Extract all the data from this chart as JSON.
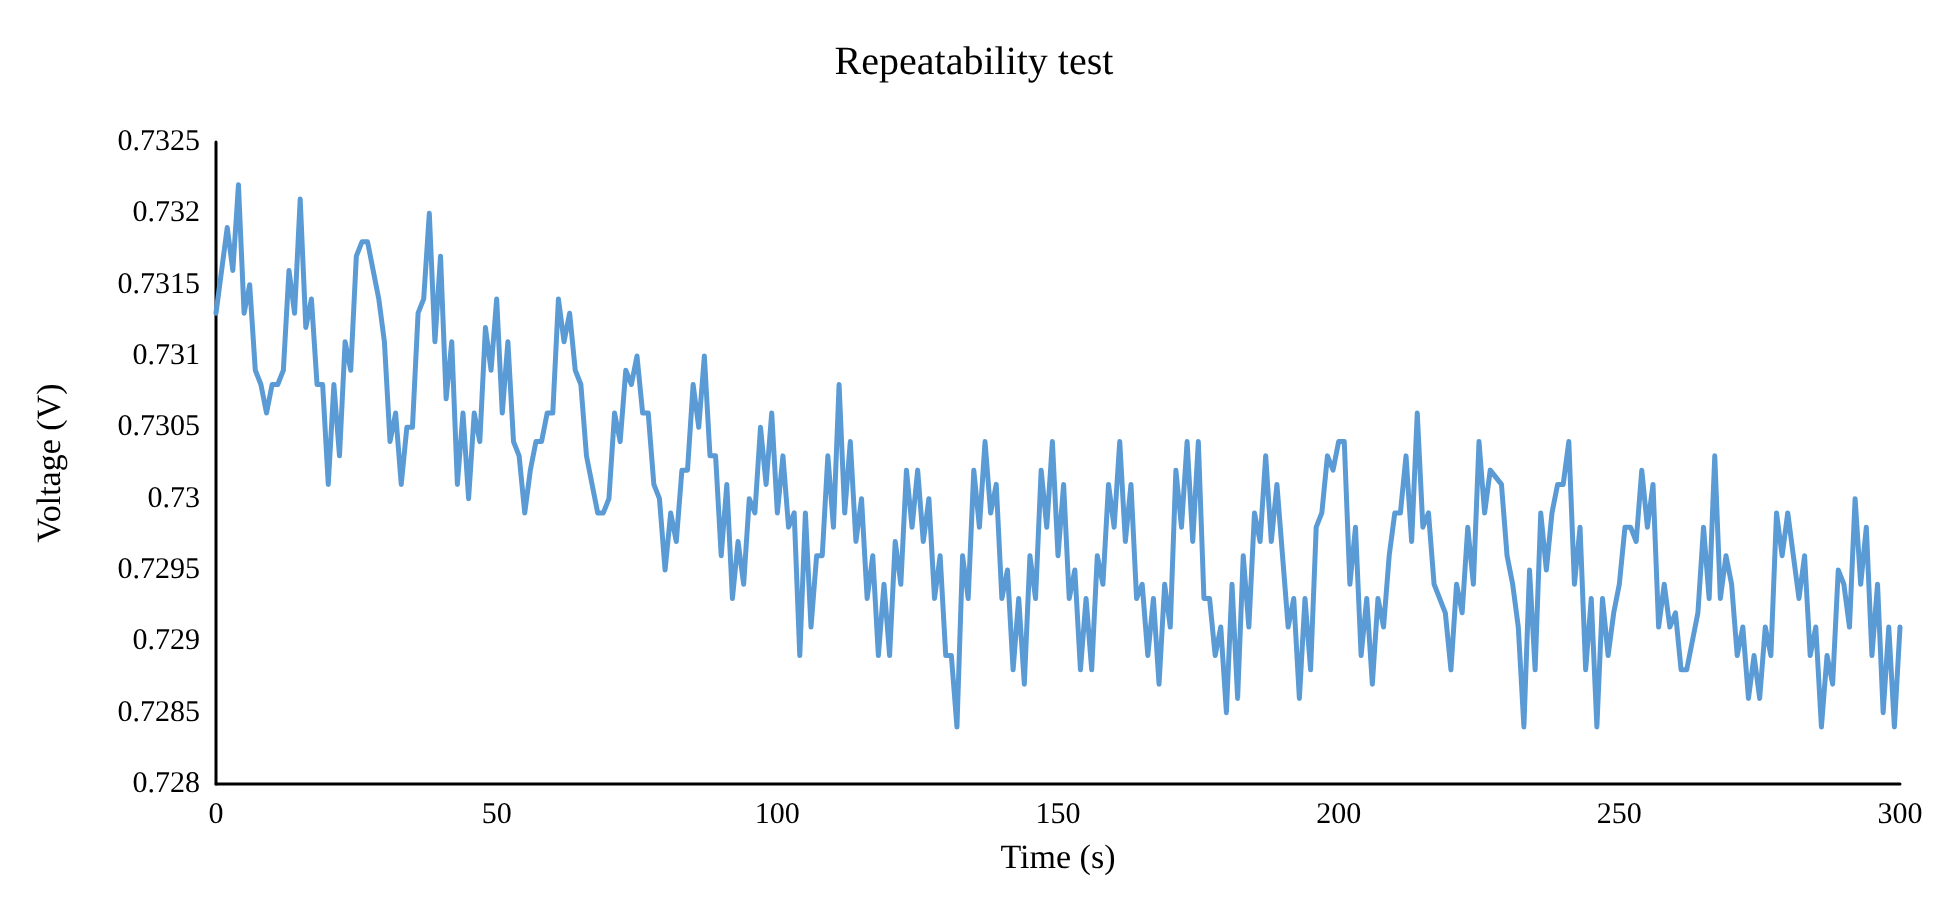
{
  "chart_data": {
    "type": "line",
    "title": "Repeatability test",
    "xlabel": "Time (s)",
    "ylabel": "Voltage (V)",
    "xlim": [
      0,
      300
    ],
    "xticks": [
      0,
      50,
      100,
      150,
      200,
      250,
      300
    ],
    "ylim": [
      0.728,
      0.7325
    ],
    "yticks": [
      0.728,
      0.7285,
      0.729,
      0.7295,
      0.73,
      0.7305,
      0.731,
      0.7315,
      0.732,
      0.7325
    ],
    "marker": "none",
    "line_style": "solid",
    "series": [
      {
        "color": "#5b9bd5",
        "x": [
          0,
          2,
          3,
          4,
          5,
          6,
          7,
          8,
          9,
          10,
          11,
          12,
          13,
          14,
          15,
          16,
          17,
          18,
          19,
          20,
          21,
          22,
          23,
          24,
          25,
          26,
          27,
          28,
          29,
          30,
          31,
          32,
          33,
          34,
          35,
          36,
          37,
          38,
          39,
          40,
          41,
          42,
          43,
          44,
          45,
          46,
          47,
          48,
          49,
          50,
          51,
          52,
          53,
          54,
          55,
          56,
          57,
          58,
          59,
          60,
          61,
          62,
          63,
          64,
          65,
          66,
          67,
          68,
          69,
          70,
          71,
          72,
          73,
          74,
          75,
          76,
          77,
          78,
          79,
          80,
          81,
          82,
          83,
          84,
          85,
          86,
          87,
          88,
          89,
          90,
          91,
          92,
          93,
          94,
          95,
          96,
          97,
          98,
          99,
          100,
          101,
          102,
          103,
          104,
          105,
          106,
          107,
          108,
          109,
          110,
          111,
          112,
          113,
          114,
          115,
          116,
          117,
          118,
          119,
          120,
          121,
          122,
          123,
          124,
          125,
          126,
          127,
          128,
          129,
          130,
          131,
          132,
          133,
          134,
          135,
          136,
          137,
          138,
          139,
          140,
          141,
          142,
          143,
          144,
          145,
          146,
          147,
          148,
          149,
          150,
          151,
          152,
          153,
          154,
          155,
          156,
          157,
          158,
          159,
          160,
          161,
          162,
          163,
          164,
          165,
          166,
          167,
          168,
          169,
          170,
          171,
          172,
          173,
          174,
          175,
          176,
          177,
          178,
          179,
          180,
          181,
          182,
          183,
          184,
          185,
          186,
          187,
          188,
          189,
          190,
          191,
          192,
          193,
          194,
          195,
          196,
          197,
          198,
          199,
          200,
          201,
          202,
          203,
          204,
          205,
          206,
          207,
          208,
          209,
          210,
          211,
          212,
          213,
          214,
          215,
          216,
          217,
          219,
          220,
          221,
          222,
          223,
          224,
          225,
          226,
          227,
          229,
          230,
          231,
          232,
          233,
          234,
          235,
          236,
          237,
          238,
          239,
          240,
          241,
          242,
          243,
          244,
          245,
          246,
          247,
          248,
          249,
          250,
          251,
          252,
          253,
          254,
          255,
          256,
          257,
          258,
          259,
          260,
          261,
          262,
          264,
          265,
          266,
          267,
          268,
          269,
          270,
          271,
          272,
          273,
          274,
          275,
          276,
          277,
          278,
          279,
          280,
          281,
          282,
          283,
          284,
          285,
          286,
          287,
          288,
          289,
          290,
          291,
          292,
          293,
          294,
          295,
          296,
          297,
          298,
          299,
          300
        ],
        "values": [
          0.7313,
          0.7319,
          0.7316,
          0.7322,
          0.7313,
          0.7315,
          0.7309,
          0.7308,
          0.7306,
          0.7308,
          0.7308,
          0.7309,
          0.7316,
          0.7313,
          0.7321,
          0.7312,
          0.7314,
          0.7308,
          0.7308,
          0.7301,
          0.7308,
          0.7303,
          0.7311,
          0.7309,
          0.7317,
          0.7318,
          0.7318,
          0.7316,
          0.7314,
          0.7311,
          0.7304,
          0.7306,
          0.7301,
          0.7305,
          0.7305,
          0.7313,
          0.7314,
          0.732,
          0.7311,
          0.7317,
          0.7307,
          0.7311,
          0.7301,
          0.7306,
          0.73,
          0.7306,
          0.7304,
          0.7312,
          0.7309,
          0.7314,
          0.7306,
          0.7311,
          0.7304,
          0.7303,
          0.7299,
          0.7302,
          0.7304,
          0.7304,
          0.7306,
          0.7306,
          0.7314,
          0.7311,
          0.7313,
          0.7309,
          0.7308,
          0.7303,
          0.7301,
          0.7299,
          0.7299,
          0.73,
          0.7306,
          0.7304,
          0.7309,
          0.7308,
          0.731,
          0.7306,
          0.7306,
          0.7301,
          0.73,
          0.7295,
          0.7299,
          0.7297,
          0.7302,
          0.7302,
          0.7308,
          0.7305,
          0.731,
          0.7303,
          0.7303,
          0.7296,
          0.7301,
          0.7293,
          0.7297,
          0.7294,
          0.73,
          0.7299,
          0.7305,
          0.7301,
          0.7306,
          0.7299,
          0.7303,
          0.7298,
          0.7299,
          0.7289,
          0.7299,
          0.7291,
          0.7296,
          0.7296,
          0.7303,
          0.7298,
          0.7308,
          0.7299,
          0.7304,
          0.7297,
          0.73,
          0.7293,
          0.7296,
          0.7289,
          0.7294,
          0.7289,
          0.7297,
          0.7294,
          0.7302,
          0.7298,
          0.7302,
          0.7297,
          0.73,
          0.7293,
          0.7296,
          0.7289,
          0.7289,
          0.7284,
          0.7296,
          0.7293,
          0.7302,
          0.7298,
          0.7304,
          0.7299,
          0.7301,
          0.7293,
          0.7295,
          0.7288,
          0.7293,
          0.7287,
          0.7296,
          0.7293,
          0.7302,
          0.7298,
          0.7304,
          0.7296,
          0.7301,
          0.7293,
          0.7295,
          0.7288,
          0.7293,
          0.7288,
          0.7296,
          0.7294,
          0.7301,
          0.7298,
          0.7304,
          0.7297,
          0.7301,
          0.7293,
          0.7294,
          0.7289,
          0.7293,
          0.7287,
          0.7294,
          0.7291,
          0.7302,
          0.7298,
          0.7304,
          0.7297,
          0.7304,
          0.7293,
          0.7293,
          0.7289,
          0.7291,
          0.7285,
          0.7294,
          0.7286,
          0.7296,
          0.7291,
          0.7299,
          0.7297,
          0.7303,
          0.7297,
          0.7301,
          0.7296,
          0.7291,
          0.7293,
          0.7286,
          0.7293,
          0.7288,
          0.7298,
          0.7299,
          0.7303,
          0.7302,
          0.7304,
          0.7304,
          0.7294,
          0.7298,
          0.7289,
          0.7293,
          0.7287,
          0.7293,
          0.7291,
          0.7296,
          0.7299,
          0.7299,
          0.7303,
          0.7297,
          0.7306,
          0.7298,
          0.7299,
          0.7294,
          0.7292,
          0.7288,
          0.7294,
          0.7292,
          0.7298,
          0.7294,
          0.7304,
          0.7299,
          0.7302,
          0.7301,
          0.7296,
          0.7294,
          0.7291,
          0.7284,
          0.7295,
          0.7288,
          0.7299,
          0.7295,
          0.7299,
          0.7301,
          0.7301,
          0.7304,
          0.7294,
          0.7298,
          0.7288,
          0.7293,
          0.7284,
          0.7293,
          0.7289,
          0.7292,
          0.7294,
          0.7298,
          0.7298,
          0.7297,
          0.7302,
          0.7298,
          0.7301,
          0.7291,
          0.7294,
          0.7291,
          0.7292,
          0.7288,
          0.7288,
          0.7292,
          0.7298,
          0.7293,
          0.7303,
          0.7293,
          0.7296,
          0.7294,
          0.7289,
          0.7291,
          0.7286,
          0.7289,
          0.7286,
          0.7291,
          0.7289,
          0.7299,
          0.7296,
          0.7299,
          0.7296,
          0.7293,
          0.7296,
          0.7289,
          0.7291,
          0.7284,
          0.7289,
          0.7287,
          0.7295,
          0.7294,
          0.7291,
          0.73,
          0.7294,
          0.7298,
          0.7289,
          0.7294,
          0.7285,
          0.7291,
          0.7284,
          0.7291
        ]
      }
    ]
  }
}
